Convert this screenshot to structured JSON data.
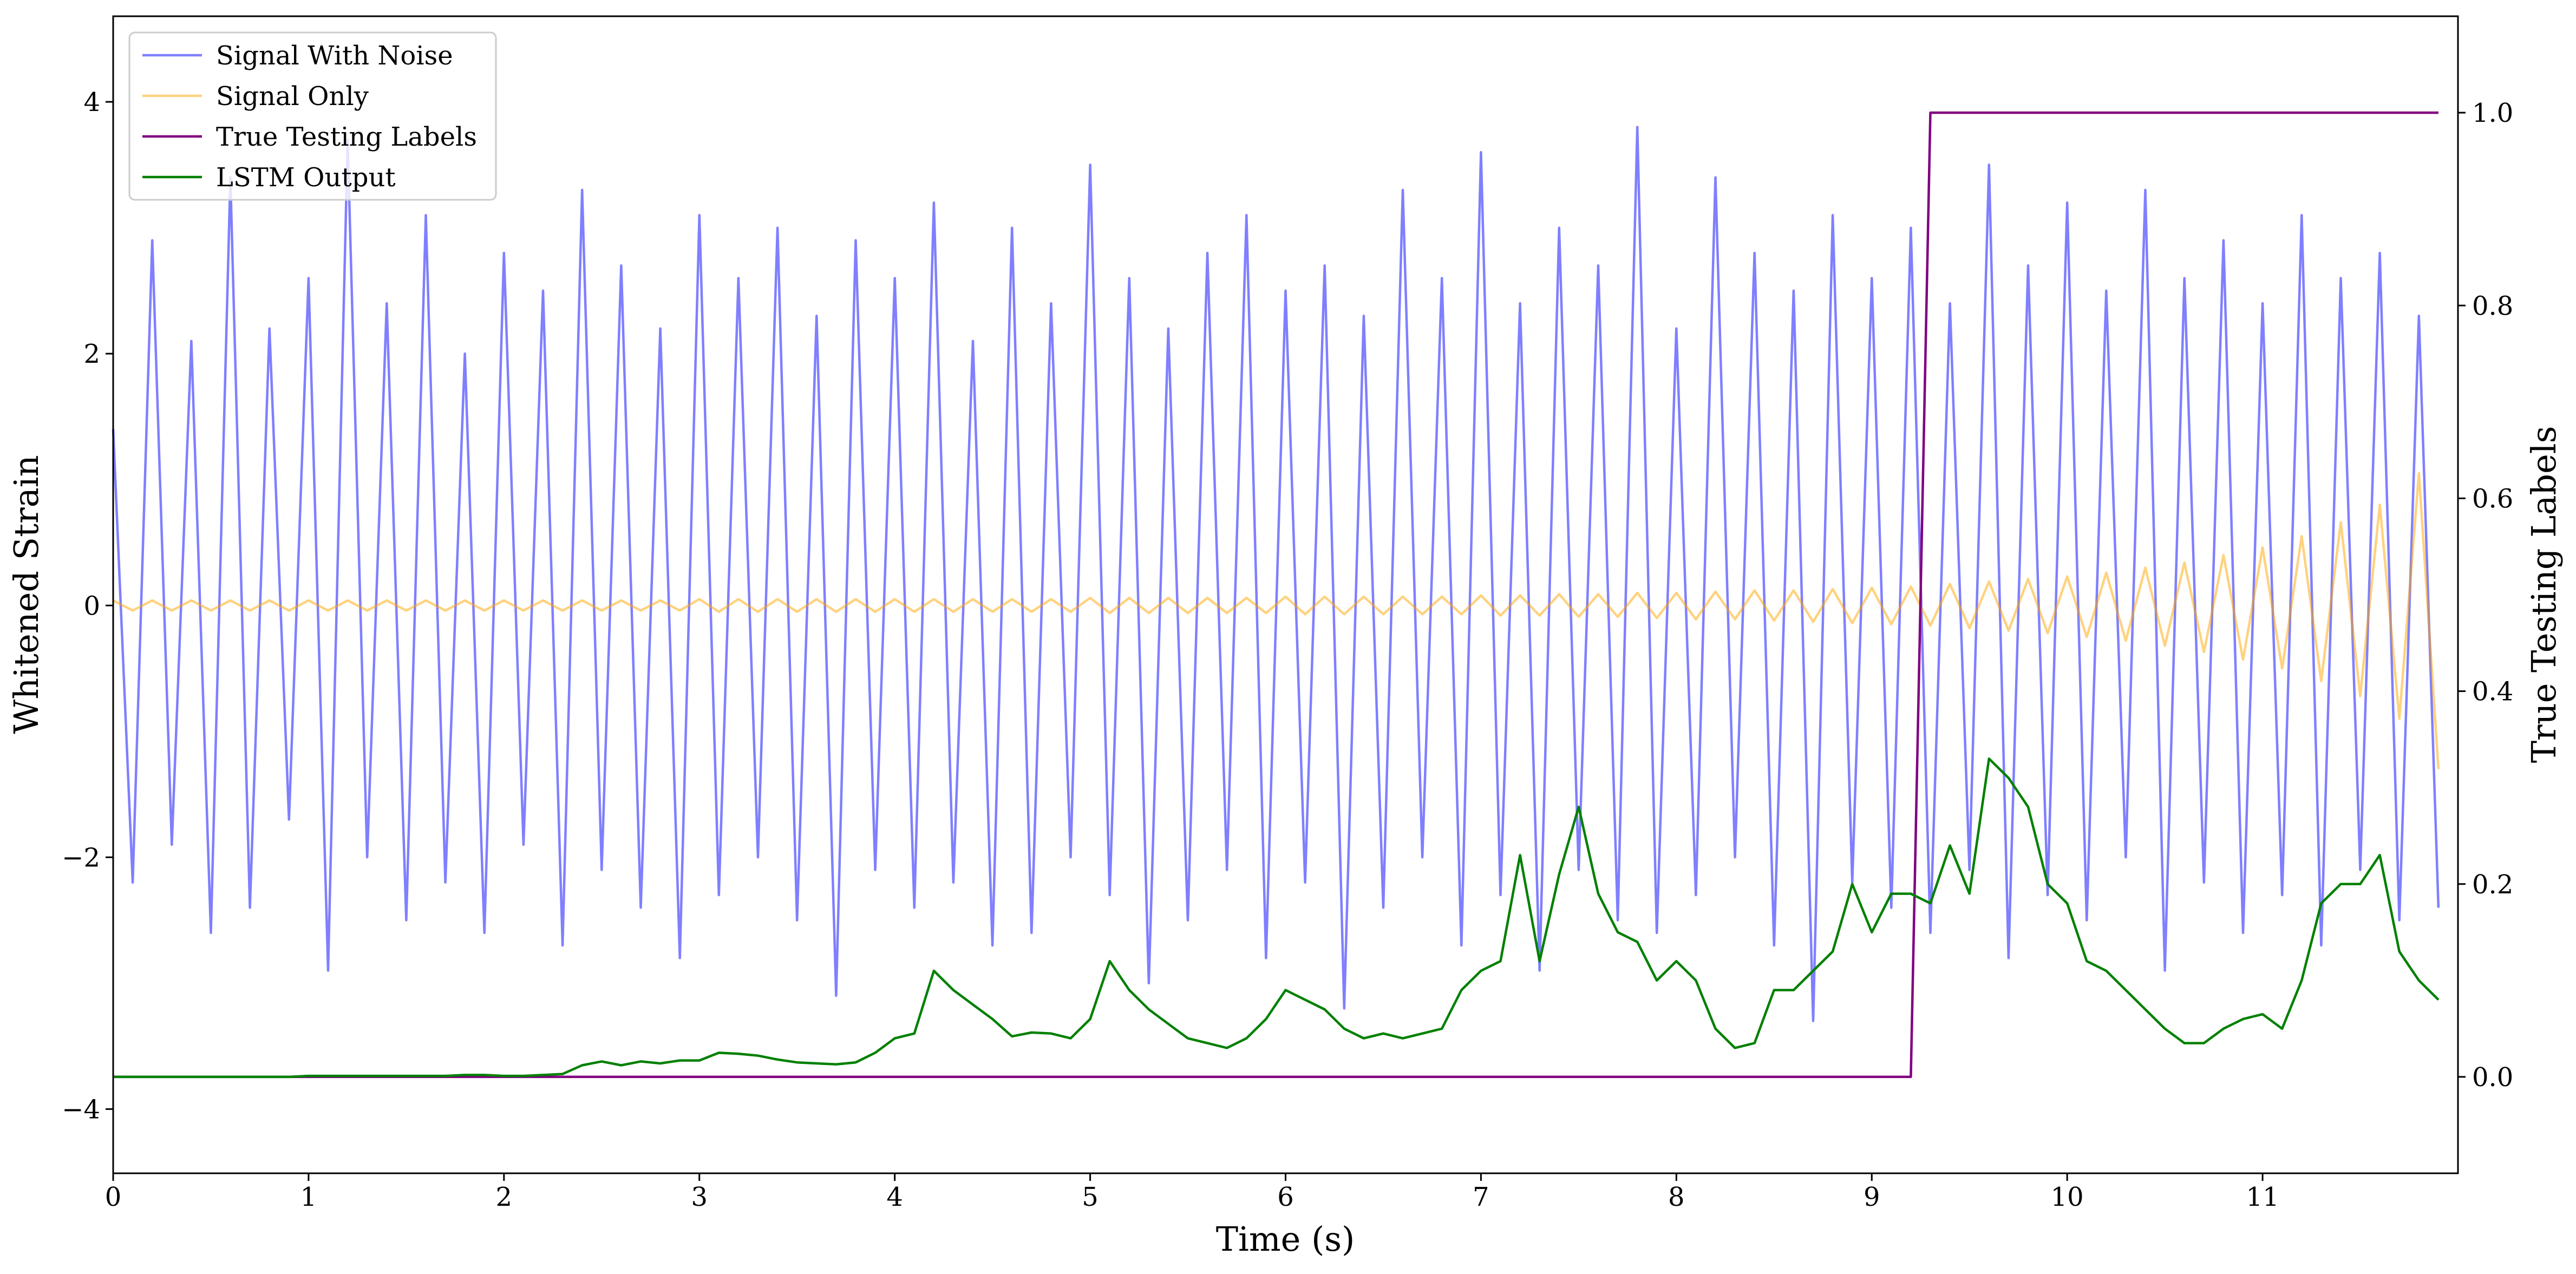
{
  "chart_data": {
    "type": "line",
    "xlabel": "Time (s)",
    "ylabel": "Whitened Strain",
    "y2label": "True Testing Labels",
    "legend": "upper left",
    "xlim": [
      0,
      12
    ],
    "ylim": [
      -4.51,
      4.68
    ],
    "y2lim": [
      -0.1,
      1.1
    ],
    "xticks": [
      0,
      1,
      2,
      3,
      4,
      5,
      6,
      7,
      8,
      9,
      10,
      11
    ],
    "yticks": [
      {
        "value": -4,
        "label": "−4"
      },
      {
        "value": -2,
        "label": "−2"
      },
      0,
      2,
      4
    ],
    "y2ticks": [
      {
        "value": 0,
        "label": "0.0"
      },
      0.2,
      0.4,
      0.6,
      0.8,
      {
        "value": 1,
        "label": "1.0"
      }
    ],
    "x": [
      0,
      0.1,
      0.2,
      0.3,
      0.4,
      0.5,
      0.6,
      0.7,
      0.8,
      0.9,
      1,
      1.1,
      1.2,
      1.3,
      1.4,
      1.5,
      1.6,
      1.7,
      1.8,
      1.9,
      2,
      2.1,
      2.2,
      2.3,
      2.4,
      2.5,
      2.6,
      2.7,
      2.8,
      2.9,
      3,
      3.1,
      3.2,
      3.3,
      3.4,
      3.5,
      3.6,
      3.7,
      3.8,
      3.9,
      4,
      4.1,
      4.2,
      4.3,
      4.4,
      4.5,
      4.6,
      4.7,
      4.8,
      4.9,
      5,
      5.1,
      5.2,
      5.3,
      5.4,
      5.5,
      5.6,
      5.7,
      5.8,
      5.9,
      6,
      6.1,
      6.2,
      6.3,
      6.4,
      6.5,
      6.6,
      6.7,
      6.8,
      6.9,
      7,
      7.1,
      7.2,
      7.3,
      7.4,
      7.5,
      7.6,
      7.7,
      7.8,
      7.9,
      8,
      8.1,
      8.2,
      8.3,
      8.4,
      8.5,
      8.6,
      8.7,
      8.8,
      8.9,
      9,
      9.1,
      9.2,
      9.3,
      9.4,
      9.5,
      9.6,
      9.7,
      9.8,
      9.9,
      10,
      10.1,
      10.2,
      10.3,
      10.4,
      10.5,
      10.6,
      10.7,
      10.8,
      10.9,
      11,
      11.1,
      11.2,
      11.3,
      11.4,
      11.5,
      11.6,
      11.7,
      11.8,
      11.9
    ],
    "series": [
      {
        "name": "Signal With Noise",
        "color": "#0000ff",
        "alpha": 0.5,
        "values": [
          1.4,
          -2.2,
          2.9,
          -1.9,
          2.1,
          -2.6,
          3.4,
          -2.4,
          2.2,
          -1.7,
          2.6,
          -2.9,
          3.7,
          -2.0,
          2.4,
          -2.5,
          3.1,
          -2.2,
          2.0,
          -2.6,
          2.8,
          -1.9,
          2.5,
          -2.7,
          3.3,
          -2.1,
          2.7,
          -2.4,
          2.2,
          -2.8,
          3.1,
          -2.3,
          2.6,
          -2.0,
          3.0,
          -2.5,
          2.3,
          -3.1,
          2.9,
          -2.1,
          2.6,
          -2.4,
          3.2,
          -2.2,
          2.1,
          -2.7,
          3.0,
          -2.6,
          2.4,
          -2.0,
          3.5,
          -2.3,
          2.6,
          -3.0,
          2.2,
          -2.5,
          2.8,
          -2.1,
          3.1,
          -2.8,
          2.5,
          -2.2,
          2.7,
          -3.2,
          2.3,
          -2.4,
          3.3,
          -2.0,
          2.6,
          -2.7,
          3.6,
          -2.3,
          2.4,
          -2.9,
          3.0,
          -2.1,
          2.7,
          -2.5,
          3.8,
          -2.6,
          2.2,
          -2.3,
          3.4,
          -2.0,
          2.8,
          -2.7,
          2.5,
          -3.3,
          3.1,
          -2.2,
          2.6,
          -2.4,
          3.0,
          -2.6,
          2.4,
          -2.1,
          3.5,
          -2.8,
          2.7,
          -2.3,
          3.2,
          -2.5,
          2.5,
          -2.0,
          3.3,
          -2.9,
          2.6,
          -2.2,
          2.9,
          -2.6,
          2.4,
          -2.3,
          3.1,
          -2.7,
          2.6,
          -2.1,
          2.8,
          -2.5,
          2.3,
          -2.4
        ]
      },
      {
        "name": "Signal Only",
        "color": "#ffa500",
        "alpha": 0.5,
        "values": [
          0.04,
          -0.04,
          0.04,
          -0.04,
          0.04,
          -0.04,
          0.04,
          -0.04,
          0.04,
          -0.04,
          0.04,
          -0.04,
          0.04,
          -0.04,
          0.04,
          -0.04,
          0.04,
          -0.04,
          0.04,
          -0.04,
          0.04,
          -0.04,
          0.04,
          -0.04,
          0.04,
          -0.04,
          0.04,
          -0.04,
          0.04,
          -0.04,
          0.05,
          -0.05,
          0.05,
          -0.05,
          0.05,
          -0.05,
          0.05,
          -0.05,
          0.05,
          -0.05,
          0.05,
          -0.05,
          0.05,
          -0.05,
          0.05,
          -0.05,
          0.05,
          -0.05,
          0.05,
          -0.05,
          0.06,
          -0.06,
          0.06,
          -0.06,
          0.06,
          -0.06,
          0.06,
          -0.06,
          0.06,
          -0.06,
          0.07,
          -0.07,
          0.07,
          -0.07,
          0.07,
          -0.07,
          0.07,
          -0.07,
          0.07,
          -0.07,
          0.08,
          -0.08,
          0.08,
          -0.08,
          0.09,
          -0.09,
          0.09,
          -0.09,
          0.1,
          -0.1,
          0.1,
          -0.11,
          0.11,
          -0.11,
          0.12,
          -0.12,
          0.12,
          -0.13,
          0.13,
          -0.14,
          0.14,
          -0.15,
          0.15,
          -0.16,
          0.17,
          -0.18,
          0.19,
          -0.2,
          0.21,
          -0.22,
          0.23,
          -0.25,
          0.26,
          -0.28,
          0.3,
          -0.32,
          0.34,
          -0.37,
          0.4,
          -0.43,
          0.46,
          -0.5,
          0.55,
          -0.6,
          0.66,
          -0.72,
          0.8,
          -0.9,
          1.05,
          -1.3
        ]
      },
      {
        "name": "True Testing Labels",
        "color": "#800080",
        "axis": "y2",
        "values": [
          0,
          0,
          0,
          0,
          0,
          0,
          0,
          0,
          0,
          0,
          0,
          0,
          0,
          0,
          0,
          0,
          0,
          0,
          0,
          0,
          0,
          0,
          0,
          0,
          0,
          0,
          0,
          0,
          0,
          0,
          0,
          0,
          0,
          0,
          0,
          0,
          0,
          0,
          0,
          0,
          0,
          0,
          0,
          0,
          0,
          0,
          0,
          0,
          0,
          0,
          0,
          0,
          0,
          0,
          0,
          0,
          0,
          0,
          0,
          0,
          0,
          0,
          0,
          0,
          0,
          0,
          0,
          0,
          0,
          0,
          0,
          0,
          0,
          0,
          0,
          0,
          0,
          0,
          0,
          0,
          0,
          0,
          0,
          0,
          0,
          0,
          0,
          0,
          0,
          0,
          0,
          0,
          0,
          1,
          1,
          1,
          1,
          1,
          1,
          1,
          1,
          1,
          1,
          1,
          1,
          1,
          1,
          1,
          1,
          1,
          1,
          1,
          1,
          1,
          1,
          1,
          1,
          1,
          1,
          1
        ]
      },
      {
        "name": "LSTM Output",
        "color": "#008000",
        "axis": "y2",
        "values": [
          0,
          0,
          0,
          0,
          0,
          0,
          0,
          0,
          0,
          0,
          0.001,
          0.001,
          0.001,
          0.001,
          0.001,
          0.001,
          0.001,
          0.001,
          0.002,
          0.002,
          0.001,
          0.001,
          0.002,
          0.003,
          0.012,
          0.016,
          0.012,
          0.016,
          0.014,
          0.017,
          0.017,
          0.025,
          0.024,
          0.022,
          0.018,
          0.015,
          0.014,
          0.013,
          0.015,
          0.025,
          0.04,
          0.045,
          0.11,
          0.09,
          0.075,
          0.06,
          0.042,
          0.046,
          0.045,
          0.04,
          0.06,
          0.12,
          0.09,
          0.07,
          0.055,
          0.04,
          0.035,
          0.03,
          0.04,
          0.06,
          0.09,
          0.08,
          0.07,
          0.05,
          0.04,
          0.045,
          0.04,
          0.045,
          0.05,
          0.09,
          0.11,
          0.12,
          0.23,
          0.12,
          0.21,
          0.28,
          0.19,
          0.15,
          0.14,
          0.1,
          0.12,
          0.1,
          0.05,
          0.03,
          0.035,
          0.09,
          0.09,
          0.11,
          0.13,
          0.2,
          0.15,
          0.19,
          0.19,
          0.18,
          0.24,
          0.19,
          0.33,
          0.31,
          0.28,
          0.2,
          0.18,
          0.12,
          0.11,
          0.09,
          0.07,
          0.05,
          0.035,
          0.035,
          0.05,
          0.06,
          0.065,
          0.05,
          0.1,
          0.18,
          0.2,
          0.2,
          0.23,
          0.13,
          0.1,
          0.08
        ]
      }
    ]
  }
}
